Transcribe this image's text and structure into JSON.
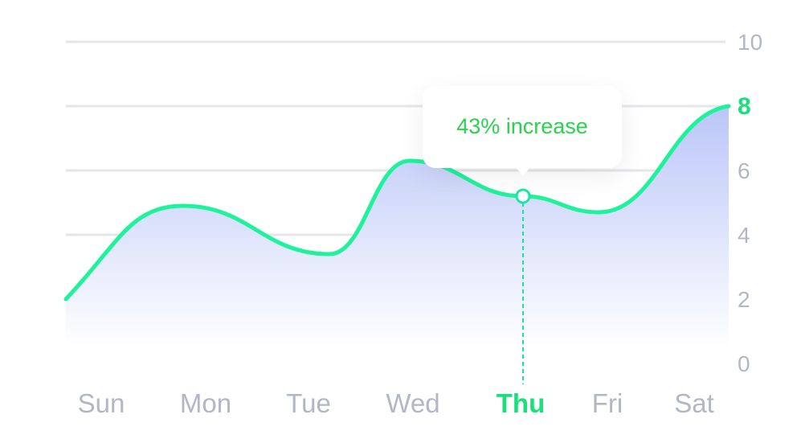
{
  "chart_data": {
    "type": "area",
    "categories": [
      "Sun",
      "Mon",
      "Tue",
      "Wed",
      "Thu",
      "Fri",
      "Sat"
    ],
    "x": [
      "Sun",
      "Mon",
      "Tue",
      "Wed",
      "Thu",
      "Fri",
      "Sat"
    ],
    "series": [
      {
        "values": [
          2,
          4.9,
          3.4,
          6.3,
          5.2,
          4.7,
          8
        ]
      }
    ],
    "yticks": [
      "0",
      "2",
      "4",
      "6",
      "8",
      "10"
    ],
    "ylim": [
      0,
      10
    ],
    "highlight_x": "Thu",
    "highlight_y_label": "8",
    "annotation": "43% increase",
    "grid": true,
    "colors": {
      "line": "#1ef29a",
      "area_top": "#bac6f8",
      "area_bottom": "#ffffff",
      "highlight": "#19e07a",
      "tick": "#b3b6c6",
      "grid": "#e6e6ea",
      "annotation": "#2bd24e"
    }
  }
}
